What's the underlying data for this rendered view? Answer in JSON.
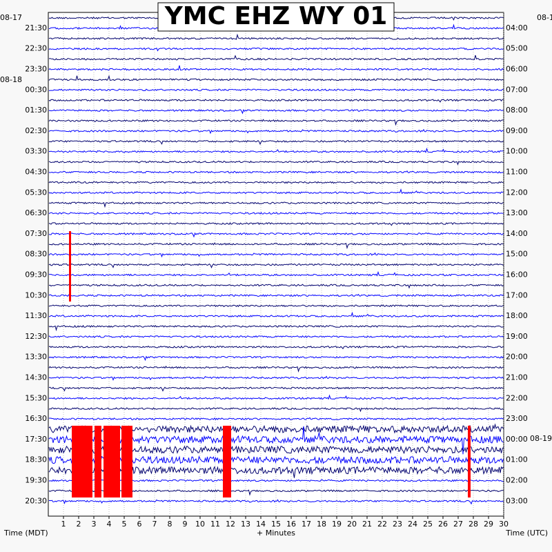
{
  "chart_data": {
    "type": "helicorder",
    "title": "YMC EHZ WY 01",
    "xlabel": "+ Minutes",
    "left_axis_label": "Time (MDT)",
    "right_axis_label": "Time (UTC)",
    "xlim": [
      0,
      30
    ],
    "xticks": [
      1,
      2,
      3,
      4,
      5,
      6,
      7,
      8,
      9,
      10,
      11,
      12,
      13,
      14,
      15,
      16,
      17,
      18,
      19,
      20,
      21,
      22,
      23,
      24,
      25,
      26,
      27,
      28,
      29,
      30
    ],
    "grid": true,
    "left_times": [
      "21:30",
      "22:30",
      "23:30",
      "00:30",
      "01:30",
      "02:30",
      "03:30",
      "04:30",
      "05:30",
      "06:30",
      "07:30",
      "08:30",
      "09:30",
      "10:30",
      "11:30",
      "12:30",
      "13:30",
      "14:30",
      "15:30",
      "16:30",
      "17:30",
      "18:30",
      "19:30",
      "20:30"
    ],
    "right_times": [
      "04:00",
      "05:00",
      "06:00",
      "07:00",
      "08:00",
      "09:00",
      "10:00",
      "11:00",
      "12:00",
      "13:00",
      "14:00",
      "15:00",
      "16:00",
      "17:00",
      "18:00",
      "19:00",
      "20:00",
      "21:00",
      "22:00",
      "23:00",
      "00:00",
      "01:00",
      "02:00",
      "03:00"
    ],
    "left_dates": [
      "08-17",
      "08-18"
    ],
    "right_dates": [
      "08-1",
      "08-19"
    ],
    "trace_colors": [
      "#00006e",
      "#0000ff"
    ]
  }
}
